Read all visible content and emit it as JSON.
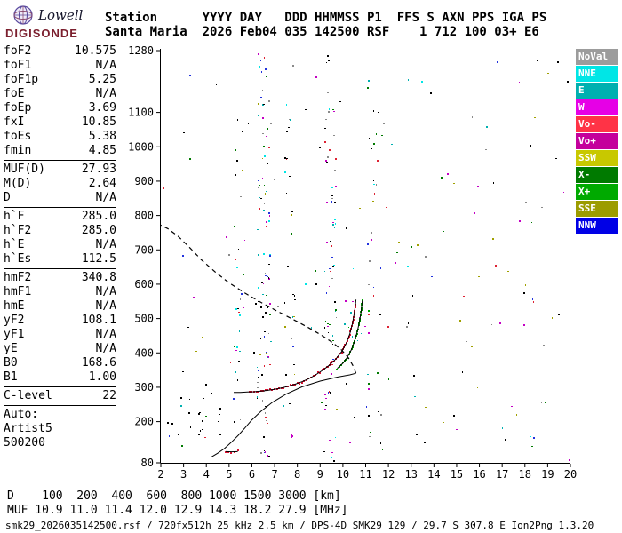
{
  "logo": {
    "name": "Lowell",
    "product": "DIGISONDE"
  },
  "header": {
    "line1": "Station      YYYY DAY   DDD HHMMSS P1  FFS S AXN PPS IGA PS",
    "line2": "Santa Maria  2026 Feb04 035 142500 RSF    1 712 100 03+ E6"
  },
  "params": {
    "groups": [
      {
        "divider_after": true,
        "rows": [
          [
            "foF2",
            "10.575"
          ],
          [
            "foF1",
            "N/A"
          ],
          [
            "foF1p",
            "5.25"
          ],
          [
            "foE",
            "N/A"
          ],
          [
            "foEp",
            "3.69"
          ],
          [
            "fxI",
            "10.85"
          ],
          [
            "foEs",
            "5.38"
          ],
          [
            "fmin",
            "4.85"
          ]
        ]
      },
      {
        "divider_after": true,
        "rows": [
          [
            "MUF(D)",
            "27.93"
          ],
          [
            "M(D)",
            "2.64"
          ],
          [
            "D",
            "N/A"
          ]
        ]
      },
      {
        "divider_after": true,
        "rows": [
          [
            "h`F",
            "285.0"
          ],
          [
            "h`F2",
            "285.0"
          ],
          [
            "h`E",
            "N/A"
          ],
          [
            "h`Es",
            "112.5"
          ]
        ]
      },
      {
        "divider_after": true,
        "rows": [
          [
            "hmF2",
            "340.8"
          ],
          [
            "hmF1",
            "N/A"
          ],
          [
            "hmE",
            "N/A"
          ],
          [
            "yF2",
            "108.1"
          ],
          [
            "yF1",
            "N/A"
          ],
          [
            "yE",
            "N/A"
          ],
          [
            "B0",
            "168.6"
          ],
          [
            "B1",
            "1.00"
          ]
        ]
      },
      {
        "divider_after": true,
        "rows": [
          [
            "C-level",
            "22"
          ]
        ]
      },
      {
        "divider_after": false,
        "rows": [
          [
            "Auto:",
            ""
          ],
          [
            "Artist5",
            ""
          ],
          [
            "500200",
            ""
          ]
        ]
      }
    ]
  },
  "legend": {
    "items": [
      {
        "label": "NoVal",
        "color": "#9c9c9c"
      },
      {
        "label": "NNE",
        "color": "#00e6e6"
      },
      {
        "label": "E",
        "color": "#00b0b0"
      },
      {
        "label": "W",
        "color": "#e600e6"
      },
      {
        "label": "Vo-",
        "color": "#ff3346"
      },
      {
        "label": "Vo+",
        "color": "#c4009c"
      },
      {
        "label": "SSW",
        "color": "#c8c800"
      },
      {
        "label": "X-",
        "color": "#007a00"
      },
      {
        "label": "X+",
        "color": "#00aa00"
      },
      {
        "label": "SSE",
        "color": "#9c9c00"
      },
      {
        "label": "NNW",
        "color": "#0000e6"
      }
    ]
  },
  "chart_data": {
    "type": "scatter",
    "title": "Digisonde ionogram, Santa Maria, 2026 Feb04 (035) 14:25:00",
    "grid": false,
    "x_axis": {
      "min": 2,
      "max": 20,
      "ticks": [
        2,
        3,
        4,
        5,
        6,
        7,
        8,
        9,
        10,
        11,
        12,
        13,
        14,
        15,
        16,
        17,
        18,
        19,
        20
      ]
    },
    "y_axis": {
      "min": 80,
      "max": 1280,
      "tick_labels": [
        1280,
        1100,
        1000,
        900,
        800,
        700,
        600,
        500,
        400,
        300,
        200,
        80
      ]
    },
    "traces": [
      {
        "name": "F2 O-mode echo",
        "style": "solid",
        "dot_color": "#dd1133",
        "dot_range": [
          5.9,
          10.55
        ],
        "points": [
          [
            5.2,
            285
          ],
          [
            5.5,
            285
          ],
          [
            5.8,
            286
          ],
          [
            6.1,
            287
          ],
          [
            6.4,
            289
          ],
          [
            6.7,
            291
          ],
          [
            7.0,
            294
          ],
          [
            7.3,
            298
          ],
          [
            7.6,
            303
          ],
          [
            7.9,
            309
          ],
          [
            8.2,
            316
          ],
          [
            8.5,
            325
          ],
          [
            8.8,
            336
          ],
          [
            9.1,
            349
          ],
          [
            9.4,
            364
          ],
          [
            9.7,
            383
          ],
          [
            9.95,
            404
          ],
          [
            10.15,
            428
          ],
          [
            10.3,
            455
          ],
          [
            10.42,
            485
          ],
          [
            10.5,
            515
          ],
          [
            10.55,
            540
          ],
          [
            10.575,
            555
          ]
        ]
      },
      {
        "name": "F2 X-mode echo",
        "style": "solid",
        "dot_color": "#00aa00",
        "dot_range": [
          9.7,
          10.85
        ],
        "points": [
          [
            9.75,
            355
          ],
          [
            10.0,
            370
          ],
          [
            10.2,
            388
          ],
          [
            10.38,
            410
          ],
          [
            10.52,
            436
          ],
          [
            10.64,
            464
          ],
          [
            10.74,
            495
          ],
          [
            10.81,
            524
          ],
          [
            10.85,
            552
          ]
        ]
      },
      {
        "name": "Es echo",
        "style": "solid",
        "dot_color": "#dd1133",
        "dot_range": [
          4.85,
          5.38
        ],
        "points": [
          [
            4.85,
            112.5
          ],
          [
            5.1,
            112
          ],
          [
            5.38,
            112.5
          ]
        ]
      },
      {
        "name": "true height profile",
        "style": "solid",
        "dot_color": null,
        "points": [
          [
            4.2,
            96
          ],
          [
            4.5,
            108
          ],
          [
            4.8,
            122
          ],
          [
            5.1,
            140
          ],
          [
            5.4,
            160
          ],
          [
            5.7,
            182
          ],
          [
            6.0,
            205
          ],
          [
            6.4,
            230
          ],
          [
            6.9,
            256
          ],
          [
            7.5,
            280
          ],
          [
            8.2,
            301
          ],
          [
            9.0,
            318
          ],
          [
            9.8,
            330
          ],
          [
            10.3,
            336
          ],
          [
            10.575,
            340.8
          ]
        ]
      },
      {
        "name": "topside profile extrapolated",
        "style": "dashed",
        "dot_color": null,
        "points": [
          [
            10.575,
            340.8
          ],
          [
            10.45,
            362
          ],
          [
            10.25,
            385
          ],
          [
            9.95,
            408
          ],
          [
            9.55,
            430
          ],
          [
            9.05,
            452
          ],
          [
            8.45,
            475
          ],
          [
            7.8,
            498
          ],
          [
            7.1,
            522
          ],
          [
            6.4,
            547
          ],
          [
            5.7,
            574
          ],
          [
            5.0,
            604
          ],
          [
            4.4,
            635
          ],
          [
            3.8,
            670
          ],
          [
            3.25,
            708
          ],
          [
            2.75,
            740
          ],
          [
            2.3,
            762
          ],
          [
            2.0,
            772
          ]
        ]
      }
    ],
    "noise": {
      "seed": 20260204,
      "palette": [
        [
          "#000000",
          26
        ],
        [
          "#00b0b0",
          10
        ],
        [
          "#00e6e6",
          7
        ],
        [
          "#c400c4",
          12
        ],
        [
          "#dd2233",
          8
        ],
        [
          "#007a00",
          8
        ],
        [
          "#2233dd",
          8
        ],
        [
          "#a0a000",
          8
        ],
        [
          "#8a8a8a",
          13
        ]
      ],
      "groups": [
        {
          "fmin": 6.2,
          "fmax": 6.8,
          "hmin": 95,
          "hmax": 1280,
          "count": 110
        },
        {
          "fmin": 9.15,
          "fmax": 9.7,
          "hmin": 95,
          "hmax": 1280,
          "count": 80
        },
        {
          "fmin": 5.2,
          "fmax": 5.6,
          "hmin": 200,
          "hmax": 1150,
          "count": 24
        },
        {
          "fmin": 7.4,
          "fmax": 7.85,
          "hmin": 140,
          "hmax": 1240,
          "count": 28
        },
        {
          "fmin": 11.0,
          "fmax": 11.7,
          "hmin": 95,
          "hmax": 1260,
          "count": 36
        },
        {
          "fmin": 2.0,
          "fmax": 20.0,
          "hmin": 80,
          "hmax": 1280,
          "count": 180
        },
        {
          "fmin": 2.1,
          "fmax": 4.6,
          "hmin": 150,
          "hmax": 310,
          "count": 22,
          "colors": [
            [
              "#000000",
              1
            ]
          ]
        },
        {
          "fmin": 10.0,
          "fmax": 11.2,
          "hmin": 430,
          "hmax": 560,
          "count": 14,
          "colors": [
            [
              "#00aa00",
              2
            ],
            [
              "#00b0b0",
              1
            ],
            [
              "#c400c4",
              1
            ]
          ]
        }
      ]
    }
  },
  "muf_table": {
    "rows": [
      {
        "label": "D",
        "values": [
          "100",
          "200",
          "400",
          "600",
          "800",
          "1000",
          "1500",
          "3000"
        ],
        "unit": "[km]"
      },
      {
        "label": "MUF",
        "values": [
          "10.9",
          "11.0",
          "11.4",
          "12.0",
          "12.9",
          "14.3",
          "18.2",
          "27.9"
        ],
        "unit": "[MHz]"
      }
    ]
  },
  "status_bar": "smk29_2026035142500.rsf / 720fx512h 25 kHz 2.5 km / DPS-4D SMK29 129 / 29.7 S 307.8 E Ion2Png 1.3.20"
}
